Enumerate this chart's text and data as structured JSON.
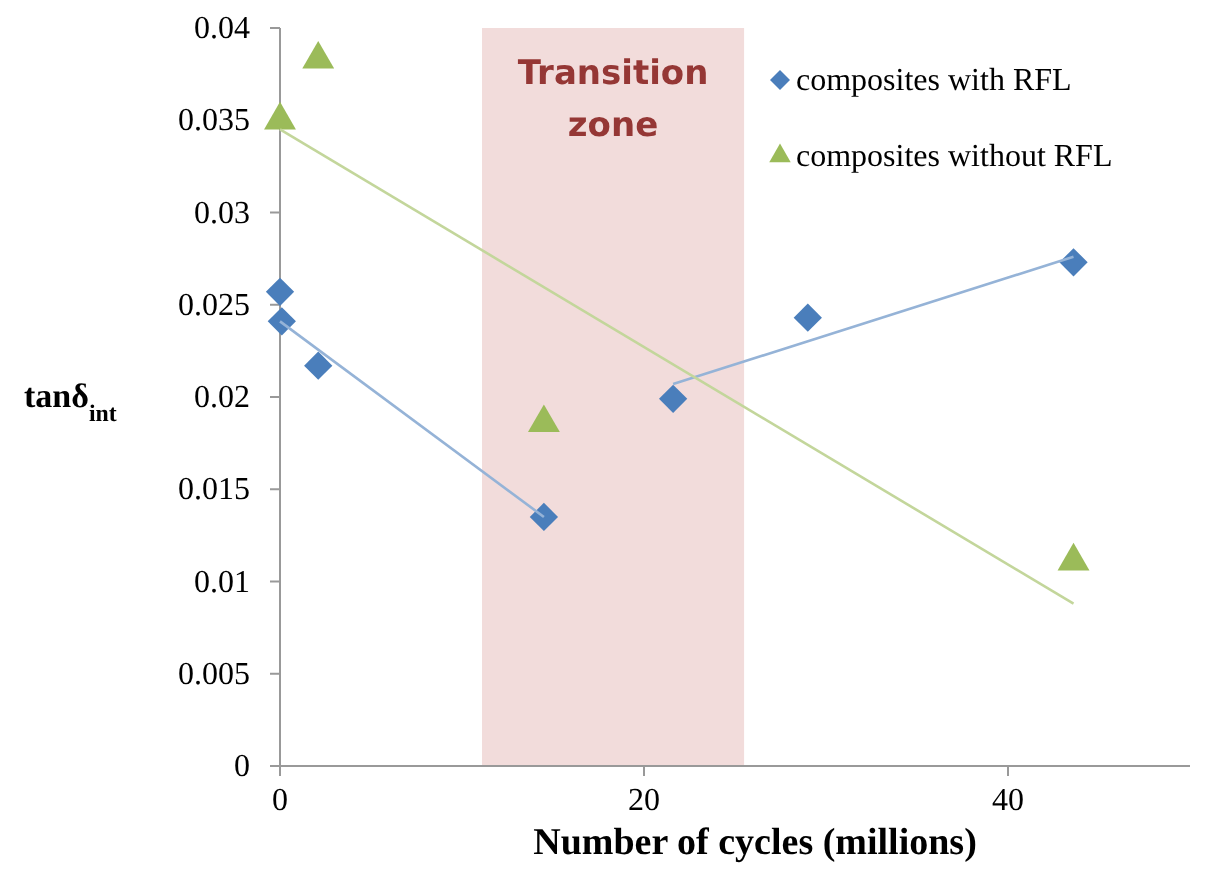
{
  "chart_data": {
    "type": "scatter",
    "xlabel": "Number of cycles (millions)",
    "ylabel": "tanδ$_{int}$",
    "xlim": [
      0,
      50
    ],
    "xticks": [
      0,
      20,
      40
    ],
    "ylim": [
      0,
      0.04
    ],
    "yticks": [
      0,
      0.005,
      0.01,
      0.015,
      0.02,
      0.025,
      0.03,
      0.035,
      0.04
    ],
    "grid": false,
    "legend": "top right",
    "bands": [
      {
        "axis": "x",
        "from": 11.1,
        "to": 25.5,
        "label": "Transition zone",
        "color": "#f2dcdb"
      }
    ],
    "series": [
      {
        "name": "composites with RFL",
        "marker": "diamond",
        "color": "#4a7ebb",
        "x": [
          0,
          0.1,
          2.1,
          14.5,
          21.6,
          29,
          43.6
        ],
        "values": [
          0.0257,
          0.0241,
          0.0217,
          0.0135,
          0.0199,
          0.0243,
          0.0273
        ]
      },
      {
        "name": "composites without RFL",
        "marker": "triangle",
        "color": "#9bbb59",
        "x": [
          0,
          2.1,
          14.5,
          43.6
        ],
        "values": [
          0.035,
          0.0383,
          0.0186,
          0.0111
        ]
      },
      {
        "type": "line",
        "marker": "none",
        "color": "#95b3d7",
        "x": [
          0,
          14.5
        ],
        "values": [
          0.0241,
          0.0135
        ]
      },
      {
        "type": "line",
        "marker": "none",
        "color": "#95b3d7",
        "x": [
          21.6,
          43.6
        ],
        "values": [
          0.0207,
          0.0276
        ]
      },
      {
        "type": "line",
        "marker": "none",
        "color": "#c3d69b",
        "x": [
          0,
          43.6
        ],
        "values": [
          0.0345,
          0.0088
        ]
      }
    ]
  }
}
